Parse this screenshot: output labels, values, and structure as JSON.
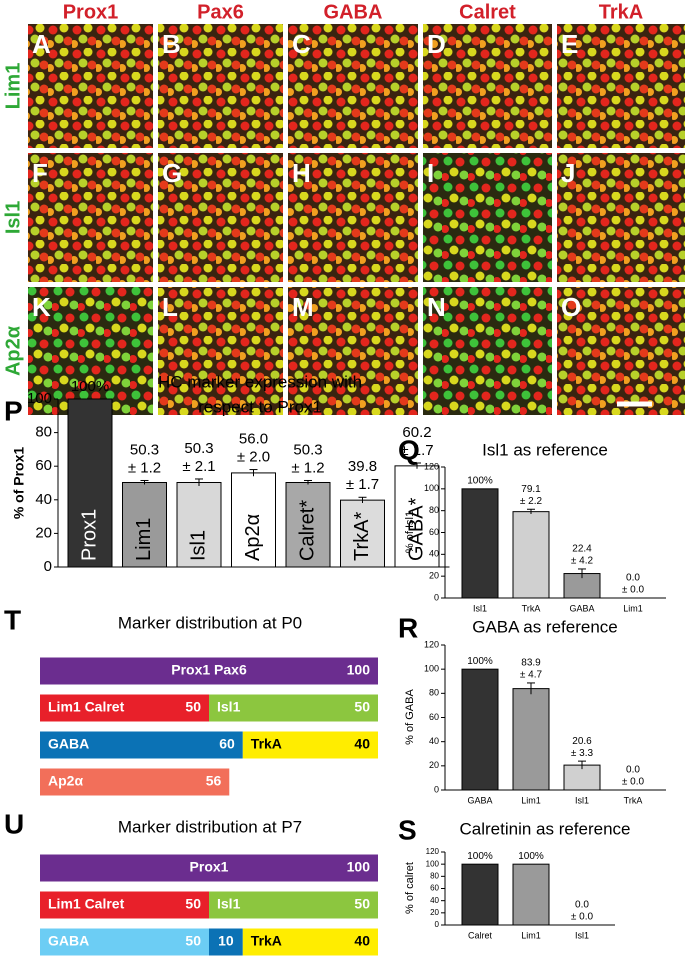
{
  "image_grid": {
    "column_labels": [
      "Prox1",
      "Pax6",
      "GABA",
      "Calret",
      "TrkA"
    ],
    "row_labels": [
      "Lim1",
      "Isl1",
      "Ap2α"
    ],
    "panel_letters": [
      "A",
      "B",
      "C",
      "D",
      "E",
      "F",
      "G",
      "H",
      "I",
      "J",
      "K",
      "L",
      "M",
      "N",
      "O"
    ]
  },
  "chart_data": [
    {
      "type": "bar",
      "panel": "P",
      "title": [
        "HC marker expression with",
        "respect to Prox1"
      ],
      "y_label": "% of Prox1",
      "categories": [
        "Prox1",
        "Lim1",
        "Isl1",
        "Ap2α",
        "Calret*",
        "TrkA*",
        "GABA*"
      ],
      "values": [
        100,
        50.3,
        50.3,
        56.0,
        50.3,
        39.8,
        60.2
      ],
      "value_labels": [
        "100%",
        "50.3",
        "50.3",
        "56.0",
        "50.3",
        "39.8",
        "60.2"
      ],
      "errors": [
        null,
        1.2,
        2.1,
        2.0,
        1.2,
        1.7,
        1.7
      ],
      "error_labels": [
        null,
        "± 1.2",
        "± 2.1",
        "± 2.0",
        "± 1.2",
        "± 1.7",
        "± 1.7"
      ],
      "colors": [
        "#333333",
        "#9a9a9a",
        "#d8d8d8",
        "#ffffff",
        "#a8a8a8",
        "#dcdcdc",
        "#ffffff"
      ],
      "ylim": [
        0,
        100
      ],
      "yticks": [
        0,
        20,
        40,
        60,
        80,
        100
      ]
    },
    {
      "type": "bar",
      "panel": "Q",
      "title": [
        "Isl1 as reference"
      ],
      "y_label": "% of Isl1",
      "categories": [
        "Isl1",
        "TrkA",
        "GABA",
        "Lim1"
      ],
      "values": [
        100,
        79.1,
        22.4,
        0.0
      ],
      "value_labels": [
        "100%",
        "79.1",
        "22.4",
        "0.0"
      ],
      "errors": [
        null,
        2.2,
        4.2,
        0.0
      ],
      "error_labels": [
        null,
        "± 2.2",
        "± 4.2",
        "± 0.0"
      ],
      "colors": [
        "#333333",
        "#d0d0d0",
        "#9a9a9a",
        "#ffffff"
      ],
      "ylim": [
        0,
        120
      ],
      "yticks": [
        0,
        20,
        40,
        60,
        80,
        100,
        120
      ]
    },
    {
      "type": "bar",
      "panel": "R",
      "title": [
        "GABA as reference"
      ],
      "y_label": "% of GABA",
      "categories": [
        "GABA",
        "Lim1",
        "Isl1",
        "TrkA"
      ],
      "values": [
        100,
        83.9,
        20.6,
        0.0
      ],
      "value_labels": [
        "100%",
        "83.9",
        "20.6",
        "0.0"
      ],
      "errors": [
        null,
        4.7,
        3.3,
        0.0
      ],
      "error_labels": [
        null,
        "± 4.7",
        "± 3.3",
        "± 0.0"
      ],
      "colors": [
        "#333333",
        "#9a9a9a",
        "#d0d0d0",
        "#ffffff"
      ],
      "ylim": [
        0,
        120
      ],
      "yticks": [
        0,
        20,
        40,
        60,
        80,
        100,
        120
      ]
    },
    {
      "type": "bar",
      "panel": "S",
      "title": [
        "Calretinin as reference"
      ],
      "y_label": "% of calret",
      "categories": [
        "Calret",
        "Lim1",
        "Isl1"
      ],
      "values": [
        100,
        100,
        0.0
      ],
      "value_labels": [
        "100%",
        "100%",
        "0.0"
      ],
      "errors": [
        null,
        null,
        0.0
      ],
      "error_labels": [
        null,
        null,
        "± 0.0"
      ],
      "colors": [
        "#333333",
        "#9a9a9a",
        "#d0d0d0"
      ],
      "ylim": [
        0,
        120
      ],
      "yticks": [
        0,
        20,
        40,
        60,
        80,
        100,
        120
      ]
    },
    {
      "type": "segments",
      "panel": "T",
      "title": [
        "Marker distribution at P0"
      ],
      "rows": [
        [
          {
            "name": "Prox1 Pax6",
            "value": 100,
            "color": "#6b2d8f"
          }
        ],
        [
          {
            "name": "Lim1 Calret",
            "value": 50,
            "color": "#e8202a"
          },
          {
            "name": "Isl1",
            "value": 50,
            "color": "#8cc63f"
          }
        ],
        [
          {
            "name": "GABA",
            "value": 60,
            "color": "#0b72b5"
          },
          {
            "name": "TrkA",
            "value": 40,
            "color": "#ffed00"
          }
        ],
        [
          {
            "name": "Ap2α",
            "value": 56,
            "color": "#f26f5a"
          }
        ]
      ]
    },
    {
      "type": "segments",
      "panel": "U",
      "title": [
        "Marker distribution at P7"
      ],
      "rows": [
        [
          {
            "name": "Prox1",
            "value": 100,
            "color": "#6b2d8f"
          }
        ],
        [
          {
            "name": "Lim1 Calret",
            "value": 50,
            "color": "#e8202a"
          },
          {
            "name": "Isl1",
            "value": 50,
            "color": "#8cc63f"
          }
        ],
        [
          {
            "name": "GABA",
            "value": 50,
            "color": "#6ccdf4"
          },
          {
            "name": null,
            "value": 10,
            "color": "#0b72b5"
          },
          {
            "name": "TrkA",
            "value": 40,
            "color": "#ffed00"
          }
        ]
      ]
    }
  ]
}
